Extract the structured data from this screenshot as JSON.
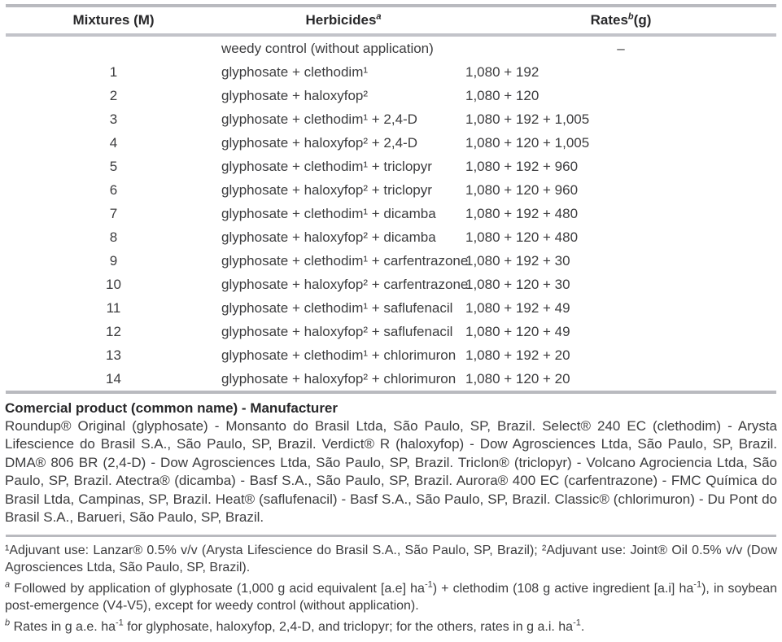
{
  "colors": {
    "background": "#ffffff",
    "rule_gray": "#b9babf",
    "text": "#3c3c3e",
    "bold_text": "#28282a"
  },
  "table": {
    "headers": [
      {
        "label": "Mixtures (M)",
        "sup": "",
        "after": ""
      },
      {
        "label": "Herbicides",
        "sup": "a",
        "after": ""
      },
      {
        "label": "Rates",
        "sup": "b",
        "after": "(g)"
      }
    ],
    "rows": [
      {
        "mixture": "",
        "herbicide": "weedy control (without application)",
        "rate": "–"
      },
      {
        "mixture": "1",
        "herbicide": "glyphosate + clethodim¹",
        "rate": "1,080 + 192"
      },
      {
        "mixture": "2",
        "herbicide": "glyphosate + haloxyfop²",
        "rate": "1,080 + 120"
      },
      {
        "mixture": "3",
        "herbicide": "glyphosate + clethodim¹ + 2,4-D",
        "rate": "1,080 + 192 + 1,005"
      },
      {
        "mixture": "4",
        "herbicide": "glyphosate + haloxyfop² + 2,4-D",
        "rate": "1,080 + 120 + 1,005"
      },
      {
        "mixture": "5",
        "herbicide": "glyphosate + clethodim¹ + triclopyr",
        "rate": "1,080 + 192 + 960"
      },
      {
        "mixture": "6",
        "herbicide": "glyphosate + haloxyfop² + triclopyr",
        "rate": "1,080 + 120 + 960"
      },
      {
        "mixture": "7",
        "herbicide": "glyphosate + clethodim¹ + dicamba",
        "rate": "1,080 + 192 + 480"
      },
      {
        "mixture": "8",
        "herbicide": "glyphosate + haloxyfop² + dicamba",
        "rate": "1,080 + 120 + 480"
      },
      {
        "mixture": "9",
        "herbicide": "glyphosate + clethodim¹ + carfentrazone",
        "rate": "1,080 + 192 + 30"
      },
      {
        "mixture": "10",
        "herbicide": "glyphosate + haloxyfop² + carfentrazone",
        "rate": "1,080 + 120 + 30"
      },
      {
        "mixture": "11",
        "herbicide": "glyphosate + clethodim¹ + saflufenacil",
        "rate": "1,080 + 192 + 49"
      },
      {
        "mixture": "12",
        "herbicide": "glyphosate + haloxyfop² + saflufenacil",
        "rate": "1,080 + 120 + 49"
      },
      {
        "mixture": "13",
        "herbicide": "glyphosate + clethodim¹ + chlorimuron",
        "rate": "1,080 + 192 + 20"
      },
      {
        "mixture": "14",
        "herbicide": "glyphosate + haloxyfop² + chlorimuron",
        "rate": "1,080 + 120 + 20"
      }
    ]
  },
  "footer": {
    "heading": "Comercial product (common name) - Manufacturer",
    "manufacturers": "Roundup® Original (glyphosate) - Monsanto do Brasil Ltda, São Paulo, SP, Brazil. Select® 240 EC (clethodim) - Arysta Lifescience do Brasil S.A., São Paulo, SP, Brazil. Verdict® R (haloxyfop) - Dow Agrosciences Ltda, São Paulo, SP, Brazil. DMA® 806 BR (2,4-D) - Dow Agrosciences Ltda, São Paulo, SP, Brazil. Triclon® (triclopyr) - Volcano Agrociencia Ltda, São Paulo, SP, Brazil. Atectra® (dicamba) - Basf S.A., São Paulo, SP, Brazil. Aurora® 400 EC (carfentrazone) - FMC Química do Brasil Ltda, Campinas, SP, Brazil. Heat® (saflufenacil) - Basf S.A., São Paulo, SP, Brazil. Classic® (chlorimuron) - Du Pont do Brasil S.A., Barueri, São Paulo, SP, Brazil.",
    "adjuvant_note": "¹Adjuvant use: Lanzar® 0.5% v/v (Arysta Lifescience do Brasil S.A., São Paulo, SP, Brazil); ²Adjuvant use: Joint® Oil 0.5% v/v (Dow Agrosciences Ltda, São Paulo, SP, Brazil).",
    "footnote_a": [
      {
        "text": "a",
        "style": "sup-italic"
      },
      {
        "text": " Followed by application of glyphosate (1,000 g acid equivalent [a.e] ha"
      },
      {
        "text": "-1",
        "style": "sup"
      },
      {
        "text": ") + clethodim (108 g active ingredient [a.i] ha"
      },
      {
        "text": "-1",
        "style": "sup"
      },
      {
        "text": "), in soybean post-emergence (V4-V5), except for weedy control (without application)."
      }
    ],
    "footnote_b": [
      {
        "text": "b",
        "style": "sup-italic"
      },
      {
        "text": " Rates in g a.e. ha"
      },
      {
        "text": "-1",
        "style": "sup"
      },
      {
        "text": " for glyphosate, haloxyfop, 2,4-D, and triclopyr; for the others, rates in g a.i. ha"
      },
      {
        "text": "-1",
        "style": "sup"
      },
      {
        "text": "."
      }
    ]
  }
}
